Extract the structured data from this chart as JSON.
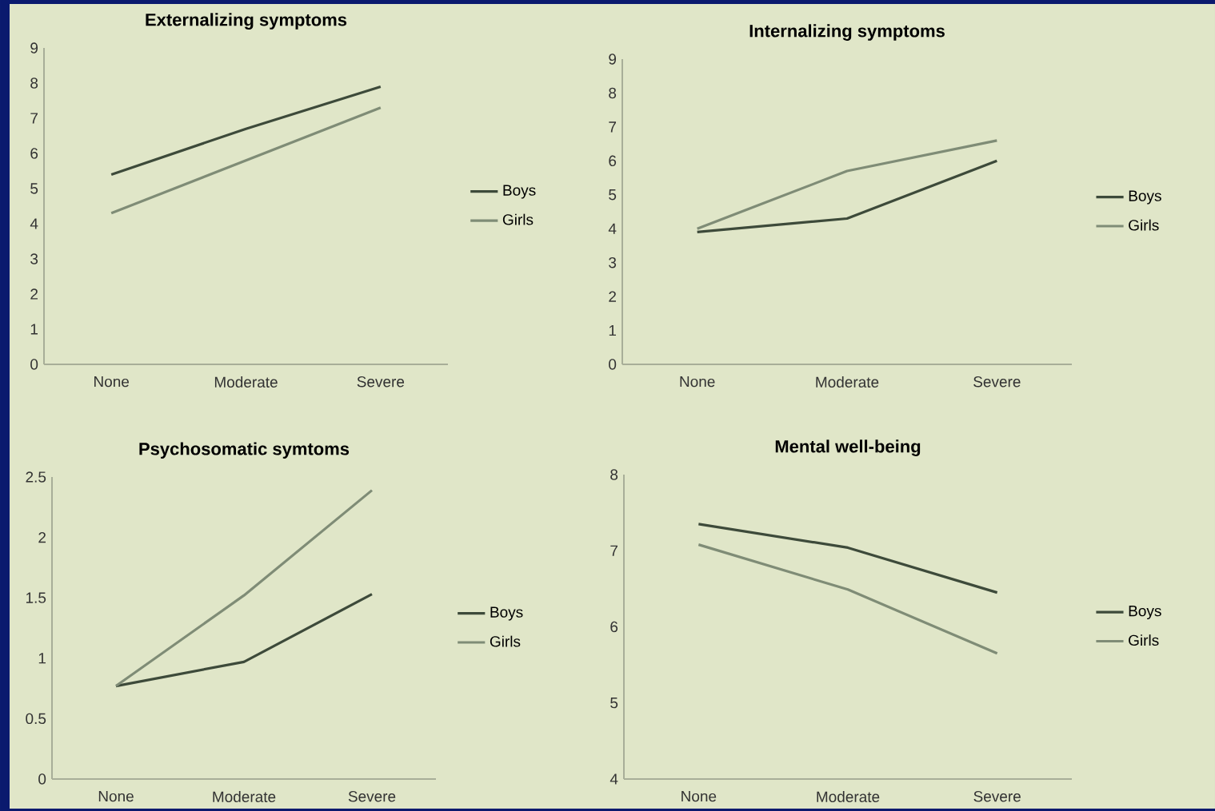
{
  "chart_data": [
    {
      "type": "line",
      "title": "Externalizing symptoms",
      "categories": [
        "None",
        "Moderate",
        "Severe"
      ],
      "ylim": [
        0,
        9
      ],
      "yticks": [
        0,
        1,
        2,
        3,
        4,
        5,
        6,
        7,
        8,
        9
      ],
      "legend": "right",
      "series": [
        {
          "name": "Boys",
          "color": "#3d4a3a",
          "values": [
            5.4,
            6.7,
            7.9
          ]
        },
        {
          "name": "Girls",
          "color": "#7f8c76",
          "values": [
            4.3,
            5.8,
            7.3
          ]
        }
      ]
    },
    {
      "type": "line",
      "title": "Internalizing symptoms",
      "categories": [
        "None",
        "Moderate",
        "Severe"
      ],
      "ylim": [
        0,
        9
      ],
      "yticks": [
        0,
        1,
        2,
        3,
        4,
        5,
        6,
        7,
        8,
        9
      ],
      "legend": "right",
      "series": [
        {
          "name": "Boys",
          "color": "#3d4a3a",
          "values": [
            3.9,
            4.3,
            6.0
          ]
        },
        {
          "name": "Girls",
          "color": "#7f8c76",
          "values": [
            4.0,
            5.7,
            6.6
          ]
        }
      ]
    },
    {
      "type": "line",
      "title": "Psychosomatic symtoms",
      "categories": [
        "None",
        "Moderate",
        "Severe"
      ],
      "ylim": [
        0,
        2.5
      ],
      "yticks": [
        0,
        0.5,
        1,
        1.5,
        2,
        2.5
      ],
      "legend": "right",
      "series": [
        {
          "name": "Boys",
          "color": "#3d4a3a",
          "values": [
            0.77,
            0.97,
            1.53
          ]
        },
        {
          "name": "Girls",
          "color": "#7f8c76",
          "values": [
            0.77,
            1.52,
            2.39
          ]
        }
      ]
    },
    {
      "type": "line",
      "title": "Mental well-being",
      "categories": [
        "None",
        "Moderate",
        "Severe"
      ],
      "ylim": [
        4,
        8
      ],
      "yticks": [
        4,
        5,
        6,
        7,
        8
      ],
      "legend": "right",
      "series": [
        {
          "name": "Boys",
          "color": "#3d4a3a",
          "values": [
            7.35,
            7.04,
            6.45
          ]
        },
        {
          "name": "Girls",
          "color": "#7f8c76",
          "values": [
            7.08,
            6.49,
            5.65
          ]
        }
      ]
    }
  ]
}
